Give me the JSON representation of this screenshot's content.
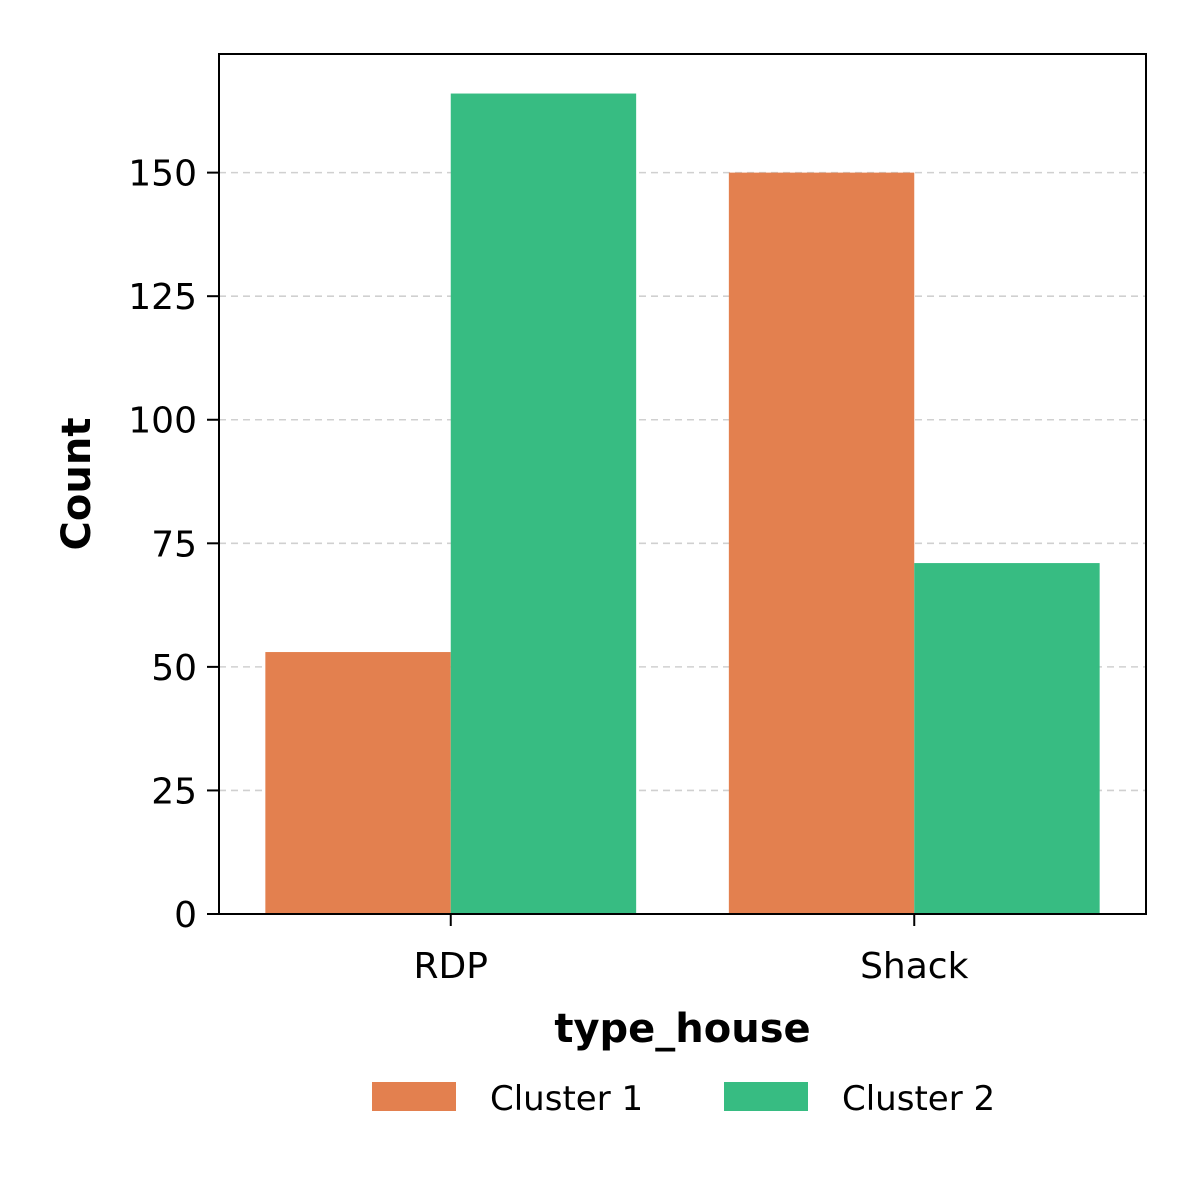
{
  "chart_data": {
    "type": "bar",
    "categories": [
      "RDP",
      "Shack"
    ],
    "series": [
      {
        "name": "Cluster 1",
        "color": "#E3804F",
        "values": [
          53,
          150
        ]
      },
      {
        "name": "Cluster 2",
        "color": "#37BC82",
        "values": [
          166,
          71
        ]
      }
    ],
    "title": "",
    "xlabel": "type_house",
    "ylabel": "Count",
    "ylim": [
      0,
      174
    ],
    "yticks": [
      0,
      25,
      50,
      75,
      100,
      125,
      150
    ],
    "grid": "y-dashed",
    "legend": "bottom-center"
  }
}
